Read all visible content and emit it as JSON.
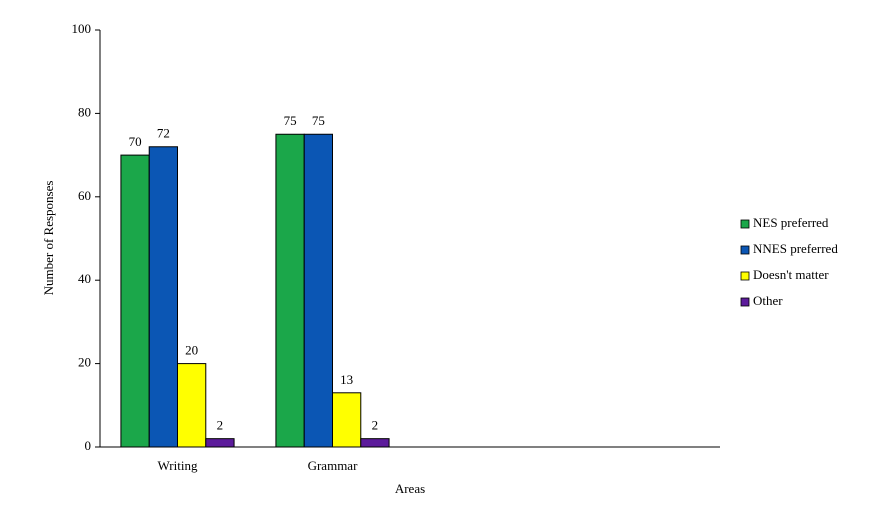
{
  "chart_data": {
    "type": "bar",
    "x_label": "Areas",
    "y_label": "Number  of  Responses",
    "categories": [
      "Writing",
      "Grammar",
      null,
      null
    ],
    "series": [
      {
        "name": "NES preferred",
        "color": "#1ba74a",
        "values": [
          70,
          75,
          null,
          null
        ]
      },
      {
        "name": "NNES preferred",
        "color": "#0b56b4",
        "values": [
          72,
          75,
          null,
          null
        ]
      },
      {
        "name": "Doesn't matter",
        "color": "#ffff00",
        "values": [
          20,
          13,
          null,
          null
        ]
      },
      {
        "name": "Other",
        "color": "#5c1b9b",
        "values": [
          2,
          2,
          null,
          null
        ]
      }
    ],
    "ylim": [
      0,
      100
    ],
    "yticks": [
      0,
      20,
      40,
      60,
      80,
      100
    ],
    "grid": false,
    "legend": "right",
    "data_labels": true
  }
}
